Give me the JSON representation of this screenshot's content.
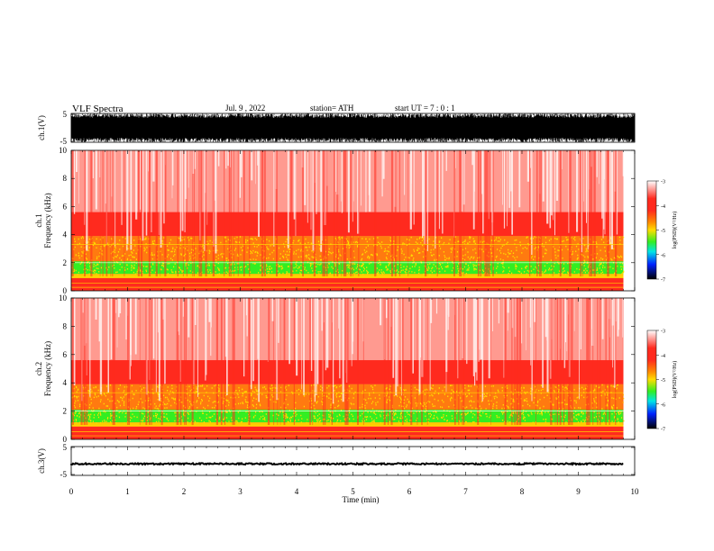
{
  "header": {
    "title": "VLF  Spectra",
    "date": "Jul.  9  , 2022",
    "station": "station= ATH",
    "start": "start  UT  =    7  : 0   : 1"
  },
  "chart_data": [
    {
      "type": "line",
      "name": "ch1-waveform",
      "ylabel": "ch.1(V)",
      "ylim": [
        -5,
        5
      ],
      "yticks": [
        "5",
        "-5"
      ],
      "xlim": [
        0,
        10
      ],
      "signal": "dense noise spanning roughly -5 to 5 V, 0 to 9.8 min"
    },
    {
      "type": "heatmap",
      "name": "ch1-spectrogram",
      "ylabel_line1": "ch.1",
      "ylabel_line2": "Frequency  (kHz)",
      "ylim": [
        0,
        10
      ],
      "yticks": [
        "0",
        "2",
        "4",
        "6",
        "8",
        "10"
      ],
      "xlim": [
        0,
        10
      ],
      "data_extent_min": 9.8,
      "colorbar": {
        "label": "log(PSD)(V²/Hz)",
        "ticks": [
          "-3",
          "-4",
          "-5",
          "-6",
          "-7"
        ],
        "range": [
          -7,
          -3
        ]
      }
    },
    {
      "type": "heatmap",
      "name": "ch2-spectrogram",
      "ylabel_line1": "ch.2",
      "ylabel_line2": "Frequency  (kHz)",
      "ylim": [
        0,
        10
      ],
      "yticks": [
        "0",
        "2",
        "4",
        "6",
        "8",
        "10"
      ],
      "xlim": [
        0,
        10
      ],
      "data_extent_min": 9.8,
      "colorbar": {
        "label": "log(PSD)(V²/Hz)",
        "ticks": [
          "-3",
          "-4",
          "-5",
          "-6",
          "-7"
        ],
        "range": [
          -7,
          -3
        ]
      }
    },
    {
      "type": "line",
      "name": "ch3-waveform",
      "ylabel": "ch.3(V)",
      "ylim": [
        -5,
        5
      ],
      "yticks": [
        "5",
        "-5"
      ],
      "xlim": [
        0,
        10
      ],
      "signal": "flat trace near -1 V with small noise, 0 to 9.8 min"
    }
  ],
  "xaxis": {
    "label": "Time  (min)",
    "ticks": [
      "0",
      "1",
      "2",
      "3",
      "4",
      "5",
      "6",
      "7",
      "8",
      "9",
      "10"
    ]
  },
  "colors": {
    "white": "#ffffff",
    "red": "#ff2a1e",
    "orange": "#ff8a00",
    "yellow": "#ffdd00",
    "green": "#33ee22",
    "cyan": "#00e5e5",
    "blue": "#0022ff",
    "black": "#000000"
  }
}
